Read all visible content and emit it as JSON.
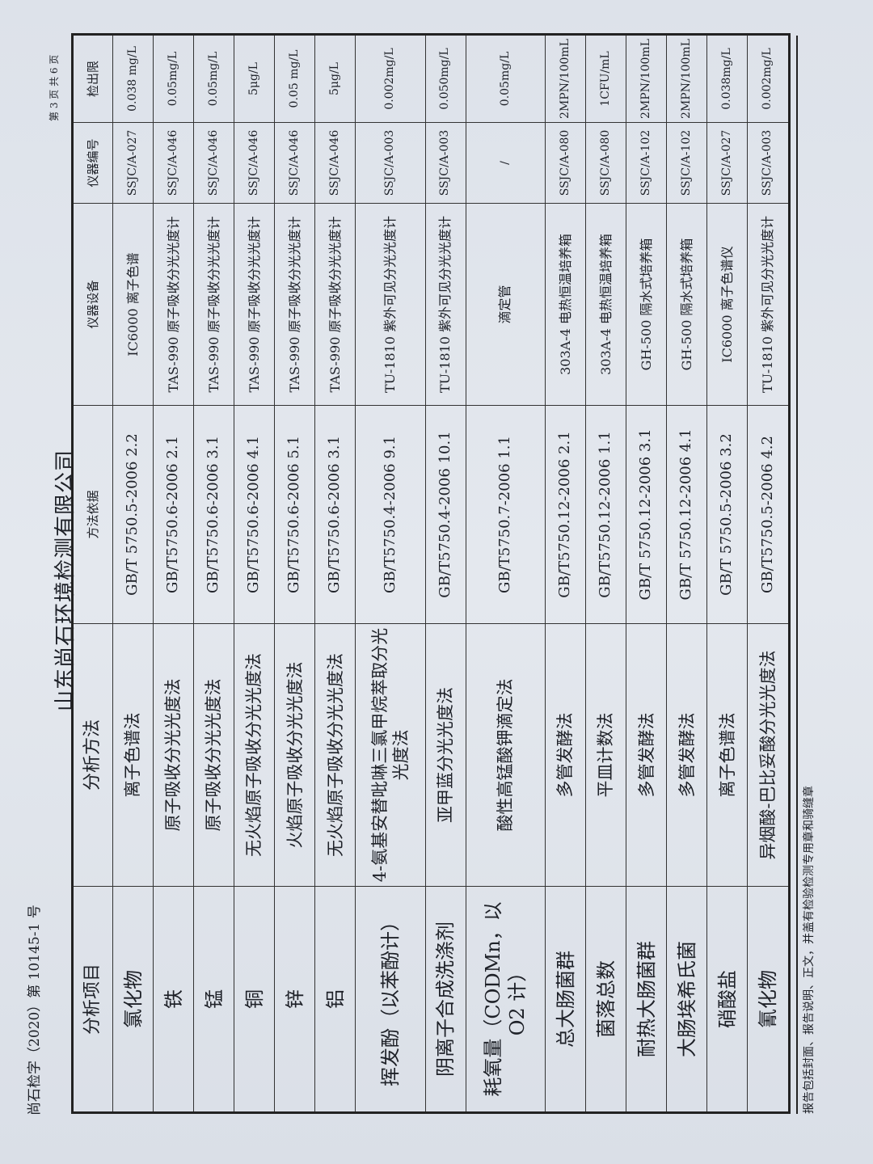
{
  "header": {
    "doc_number": "尚石检字（2020）第 10145-1 号",
    "company": "山东尚石环境检测有限公司",
    "page_info": "第 3 页 共 6 页"
  },
  "table": {
    "columns": [
      "分析项目",
      "分析方法",
      "方法依据",
      "仪器设备",
      "仪器编号",
      "检出限"
    ],
    "rows": [
      [
        "氯化物",
        "离子色谱法",
        "GB/T 5750.5-2006 2.2",
        "IC6000 离子色谱",
        "SSJC/A-027",
        "0.038 mg/L"
      ],
      [
        "铁",
        "原子吸收分光光度法",
        "GB/T5750.6-2006 2.1",
        "TAS-990 原子吸收分光光度计",
        "SSJC/A-046",
        "0.05mg/L"
      ],
      [
        "锰",
        "原子吸收分光光度法",
        "GB/T5750.6-2006 3.1",
        "TAS-990 原子吸收分光光度计",
        "SSJC/A-046",
        "0.05mg/L"
      ],
      [
        "铜",
        "无火焰原子吸收分光光度法",
        "GB/T5750.6-2006 4.1",
        "TAS-990 原子吸收分光光度计",
        "SSJC/A-046",
        "5μg/L"
      ],
      [
        "锌",
        "火焰原子吸收分光光度法",
        "GB/T5750.6-2006 5.1",
        "TAS-990 原子吸收分光光度计",
        "SSJC/A-046",
        "0.05 mg/L"
      ],
      [
        "铝",
        "无火焰原子吸收分光光度法",
        "GB/T5750.6-2006 3.1",
        "TAS-990 原子吸收分光光度计",
        "SSJC/A-046",
        "5μg/L"
      ],
      [
        "挥发酚（以苯酚计）",
        "4-氨基安替吡啉三氯甲烷萃取分光光度法",
        "GB/T5750.4-2006 9.1",
        "TU-1810 紫外可见分光光度计",
        "SSJC/A-003",
        "0.002mg/L"
      ],
      [
        "阴离子合成洗涤剂",
        "亚甲蓝分光光度法",
        "GB/T5750.4-2006 10.1",
        "TU-1810 紫外可见分光光度计",
        "SSJC/A-003",
        "0.050mg/L"
      ],
      [
        "耗氧量（CODMn，以 O2 计）",
        "酸性高锰酸钾滴定法",
        "GB/T5750.7-2006 1.1",
        "滴定管",
        "/",
        "0.05mg/L"
      ],
      [
        "总大肠菌群",
        "多管发酵法",
        "GB/T5750.12-2006 2.1",
        "303A-4 电热恒温培养箱",
        "SSJC/A-080",
        "2MPN/100mL"
      ],
      [
        "菌落总数",
        "平皿计数法",
        "GB/T5750.12-2006 1.1",
        "303A-4 电热恒温培养箱",
        "SSJC/A-080",
        "1CFU/mL"
      ],
      [
        "耐热大肠菌群",
        "多管发酵法",
        "GB/T 5750.12-2006 3.1",
        "GH-500 隔水式培养箱",
        "SSJC/A-102",
        "2MPN/100mL"
      ],
      [
        "大肠埃希氏菌",
        "多管发酵法",
        "GB/T 5750.12-2006 4.1",
        "GH-500 隔水式培养箱",
        "SSJC/A-102",
        "2MPN/100mL"
      ],
      [
        "硝酸盐",
        "离子色谱法",
        "GB/T 5750.5-2006 3.2",
        "IC6000 离子色谱仪",
        "SSJC/A-027",
        "0.038mg/L"
      ],
      [
        "氰化物",
        "异烟酸-巴比妥酸分光光度法",
        "GB/T5750.5-2006 4.2",
        "TU-1810 紫外可见分光光度计",
        "SSJC/A-003",
        "0.002mg/L"
      ]
    ]
  },
  "footer": {
    "note": "报告包括封面、报告说明、正文，并盖有检验检测专用章和骑缝章"
  }
}
